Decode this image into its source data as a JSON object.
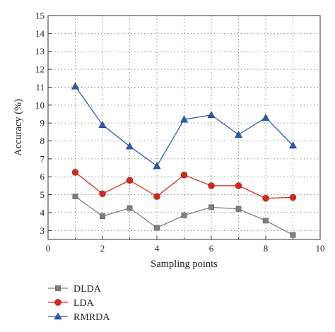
{
  "chart_data": {
    "type": "line",
    "xlabel": "Sampling points",
    "ylabel": "Accuracy (%)",
    "xlim": [
      0,
      10
    ],
    "ylim": [
      2.5,
      15
    ],
    "x_ticks": [
      0,
      2,
      4,
      6,
      8,
      10
    ],
    "y_ticks": [
      3,
      4,
      5,
      6,
      7,
      8,
      9,
      10,
      11,
      12,
      13,
      14,
      15
    ],
    "grid": true,
    "legend_position": "bottom-left",
    "x": [
      1,
      2,
      3,
      4,
      5,
      6,
      7,
      8,
      9
    ],
    "series": [
      {
        "name": "DLDA",
        "color": "#808080",
        "marker": "square",
        "values": [
          4.9,
          3.8,
          4.25,
          3.15,
          3.85,
          4.3,
          4.2,
          3.55,
          2.75
        ]
      },
      {
        "name": "LDA",
        "color": "#d9261c",
        "marker": "circle",
        "values": [
          6.25,
          5.05,
          5.8,
          4.9,
          6.1,
          5.5,
          5.5,
          4.8,
          4.85
        ]
      },
      {
        "name": "RMRDA",
        "color": "#2b5ca8",
        "marker": "triangle",
        "values": [
          11.05,
          8.9,
          7.7,
          6.6,
          9.2,
          9.45,
          8.35,
          9.3,
          7.75
        ]
      }
    ]
  }
}
